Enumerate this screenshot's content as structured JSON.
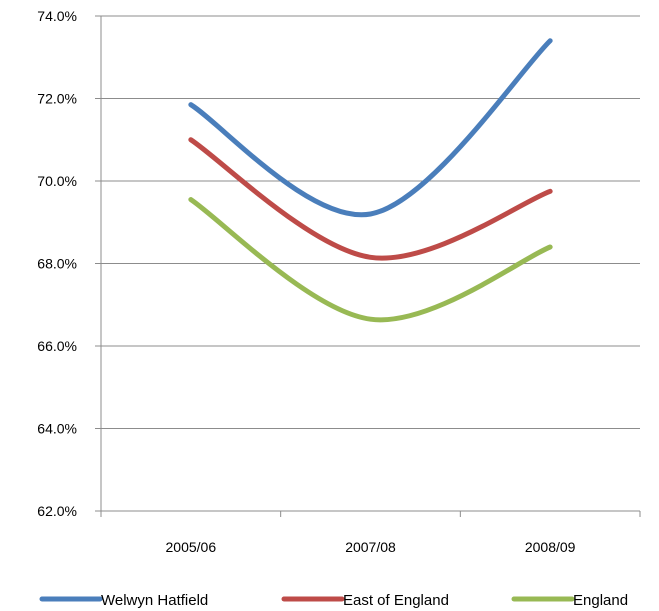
{
  "chart_data": {
    "type": "line",
    "categories": [
      "2005/06",
      "2007/08",
      "2008/09"
    ],
    "series": [
      {
        "name": "Welwyn Hatfield",
        "values": [
          71.85,
          69.2,
          73.4
        ],
        "color": "#4a7ebb"
      },
      {
        "name": "East of England",
        "values": [
          71.0,
          68.15,
          69.75
        ],
        "color": "#be4b48"
      },
      {
        "name": "England",
        "values": [
          69.55,
          66.65,
          68.4
        ],
        "color": "#98b954"
      }
    ],
    "y_ticks": [
      "62.0%",
      "64.0%",
      "66.0%",
      "68.0%",
      "70.0%",
      "72.0%",
      "74.0%"
    ],
    "ylim": [
      62,
      74
    ],
    "grid": true,
    "smooth": true,
    "legend_position": "bottom"
  }
}
